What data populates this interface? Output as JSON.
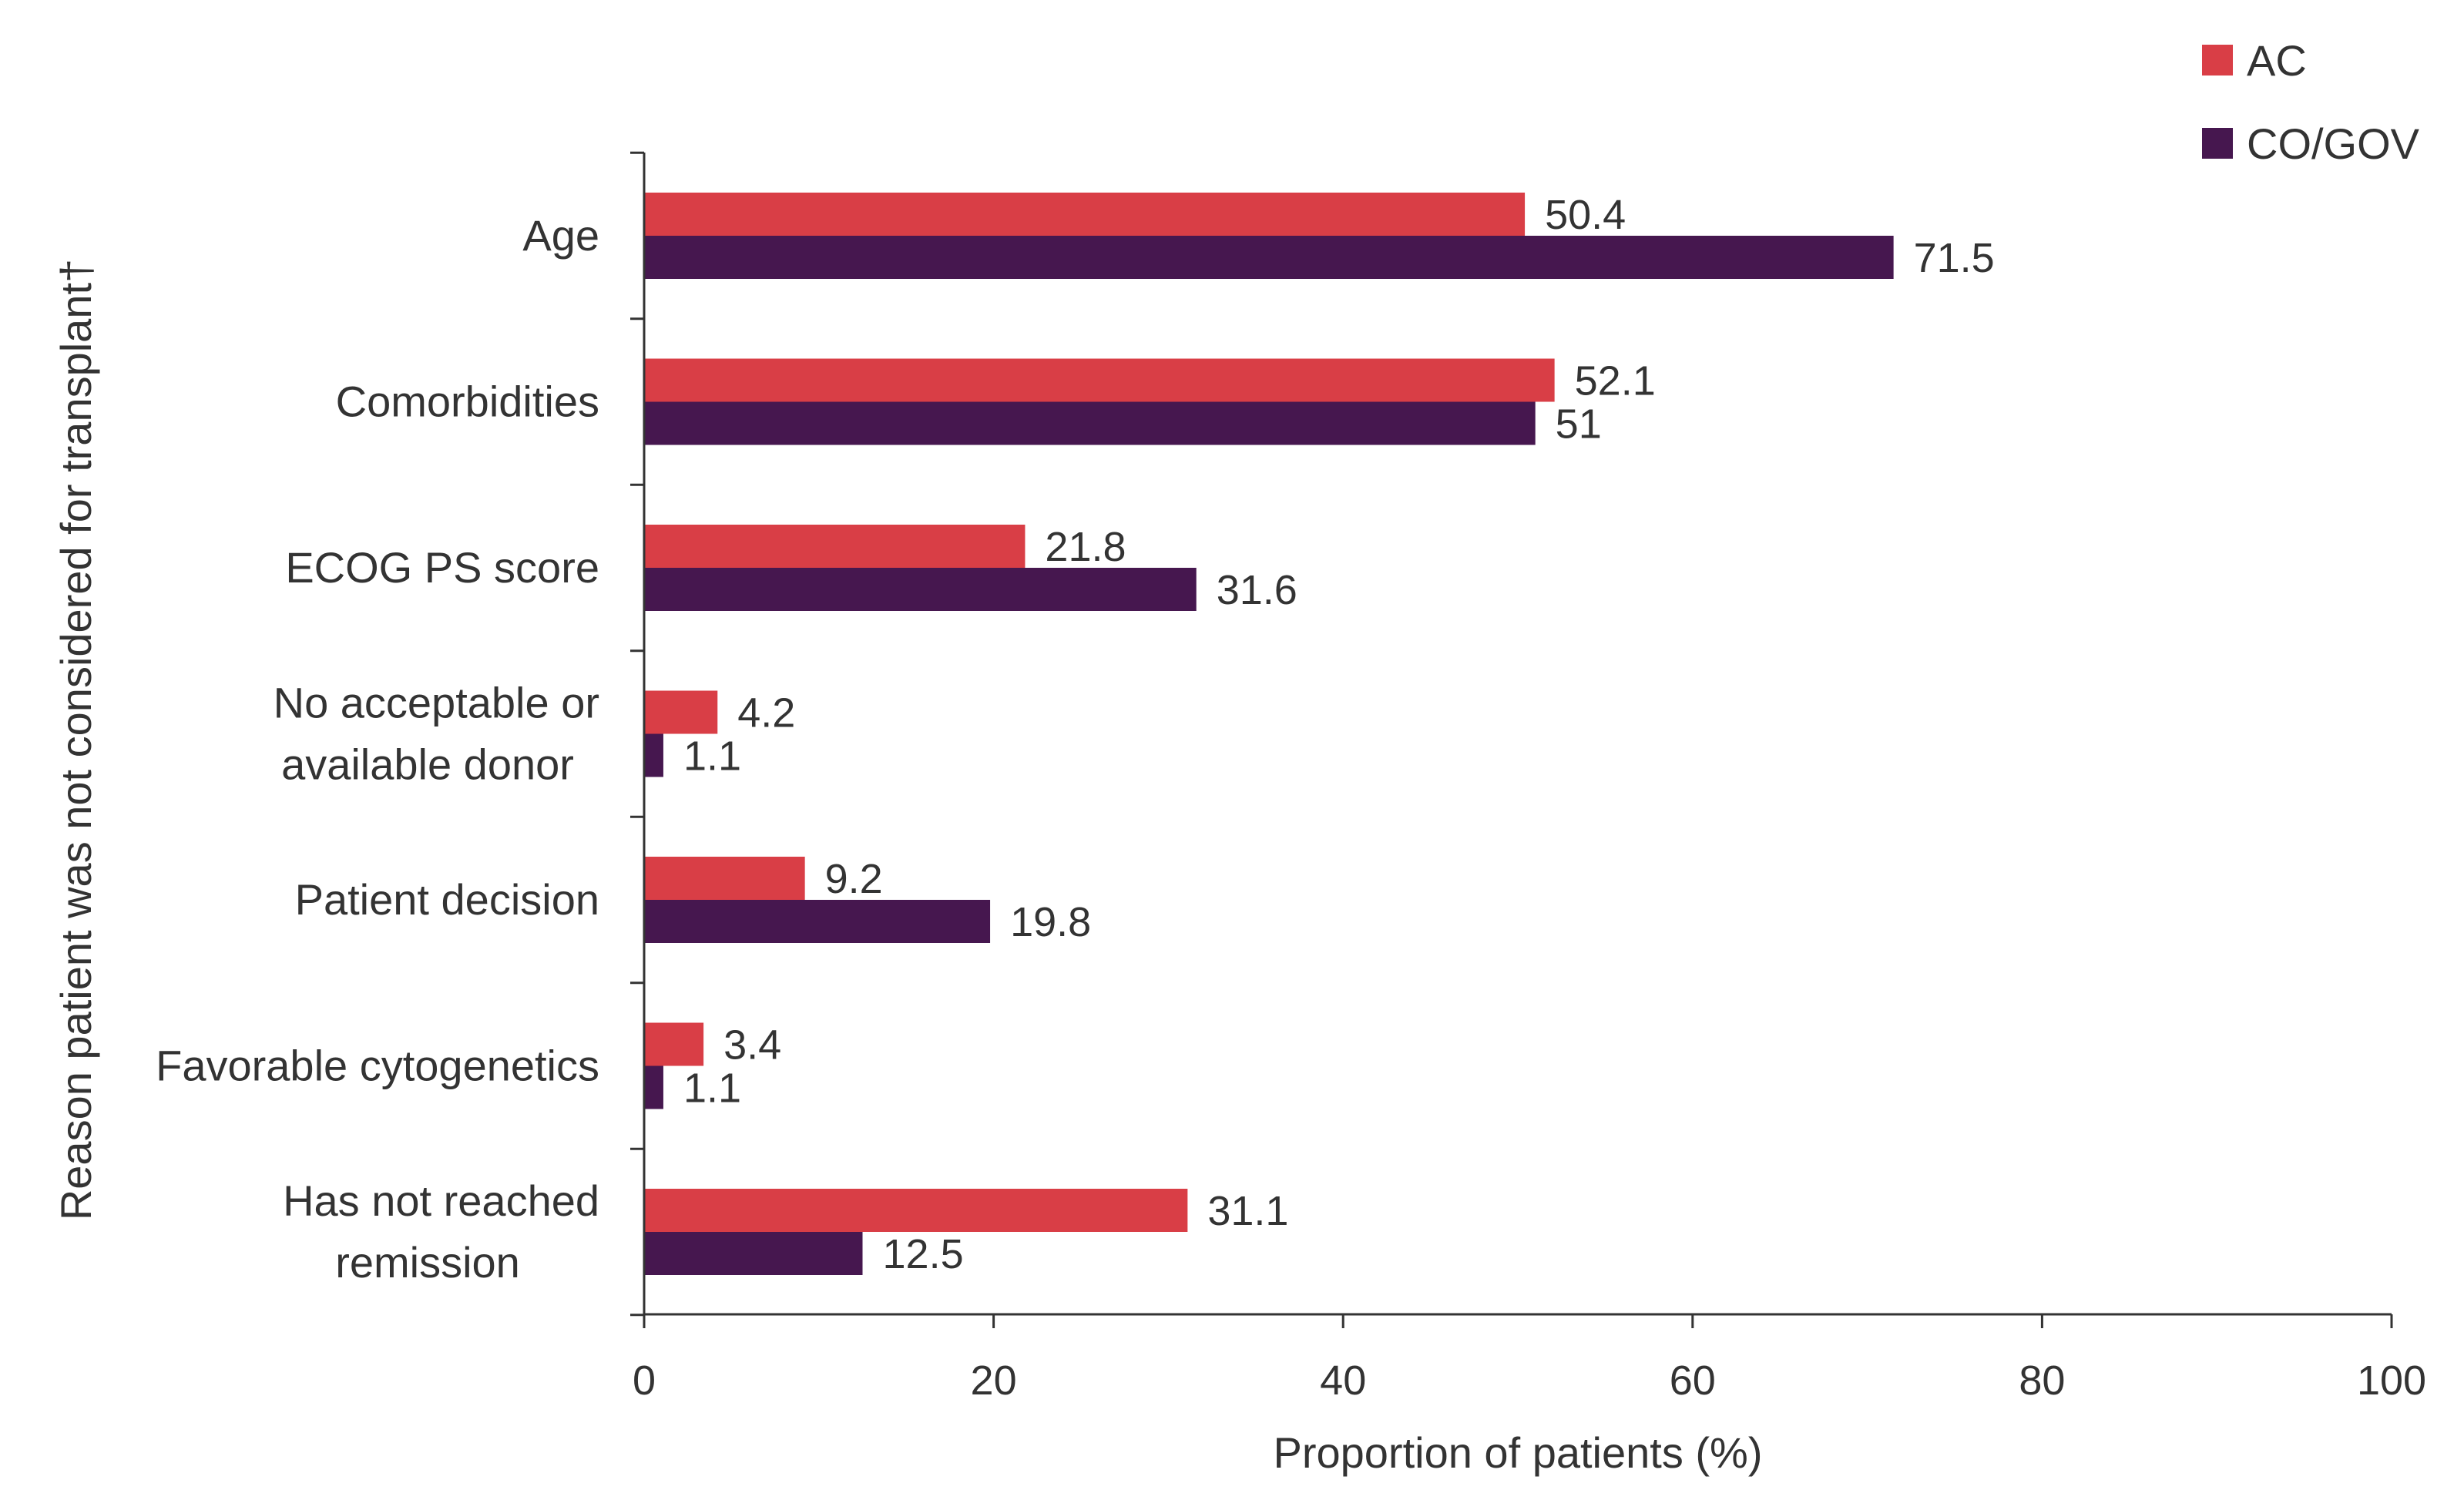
{
  "chart_data": {
    "type": "bar",
    "orientation": "horizontal",
    "categories": [
      [
        "Age"
      ],
      [
        "Comorbidities"
      ],
      [
        "ECOG PS score"
      ],
      [
        "No acceptable or",
        "available donor"
      ],
      [
        "Patient decision"
      ],
      [
        "Favorable cytogenetics"
      ],
      [
        "Has not reached",
        "remission"
      ]
    ],
    "series": [
      {
        "name": "AC",
        "color": "#d93e46",
        "values": [
          50.4,
          52.1,
          21.8,
          4.2,
          9.2,
          3.4,
          31.1
        ],
        "labels": [
          "50.4",
          "52.1",
          "21.8",
          "4.2",
          "9.2",
          "3.4",
          "31.1"
        ]
      },
      {
        "name": "CO/GOV",
        "color": "#46174f",
        "values": [
          71.5,
          51,
          31.6,
          1.1,
          19.8,
          1.1,
          12.5
        ],
        "labels": [
          "71.5",
          "51",
          "31.6",
          "1.1",
          "19.8",
          "1.1",
          "12.5"
        ]
      }
    ],
    "xlabel": "Proportion of patients (%)",
    "ylabel": "Reason patient was not considered for transplant†",
    "xlim": [
      0,
      100
    ],
    "xticks": [
      0,
      20,
      40,
      60,
      80,
      100
    ],
    "xtick_labels": [
      "0",
      "20",
      "40",
      "60",
      "80",
      "100"
    ],
    "grid": false,
    "legend_position": "top-right"
  }
}
